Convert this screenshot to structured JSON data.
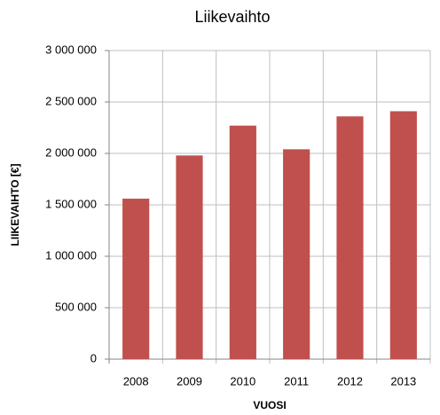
{
  "chart_data": {
    "type": "bar",
    "title": "Liikevaihto",
    "x_label": "VUOSI",
    "y_label": "LIIKEVAIHTO [€]",
    "categories": [
      "2008",
      "2009",
      "2010",
      "2011",
      "2012",
      "2013"
    ],
    "values": [
      1560000,
      1980000,
      2270000,
      2040000,
      2360000,
      2410000
    ],
    "color": "#c0504d",
    "ylim": [
      0,
      3000000
    ],
    "yticks": [
      0,
      {
        "value": 500000,
        "label": "500 000"
      },
      {
        "value": 1000000,
        "label": "1 000 000"
      },
      {
        "value": 1500000,
        "label": "1 500 000"
      },
      {
        "value": 2000000,
        "label": "2 000 000"
      },
      {
        "value": 2500000,
        "label": "2 500 000"
      },
      {
        "value": 3000000,
        "label": "3 000 000"
      }
    ],
    "grid": true
  }
}
